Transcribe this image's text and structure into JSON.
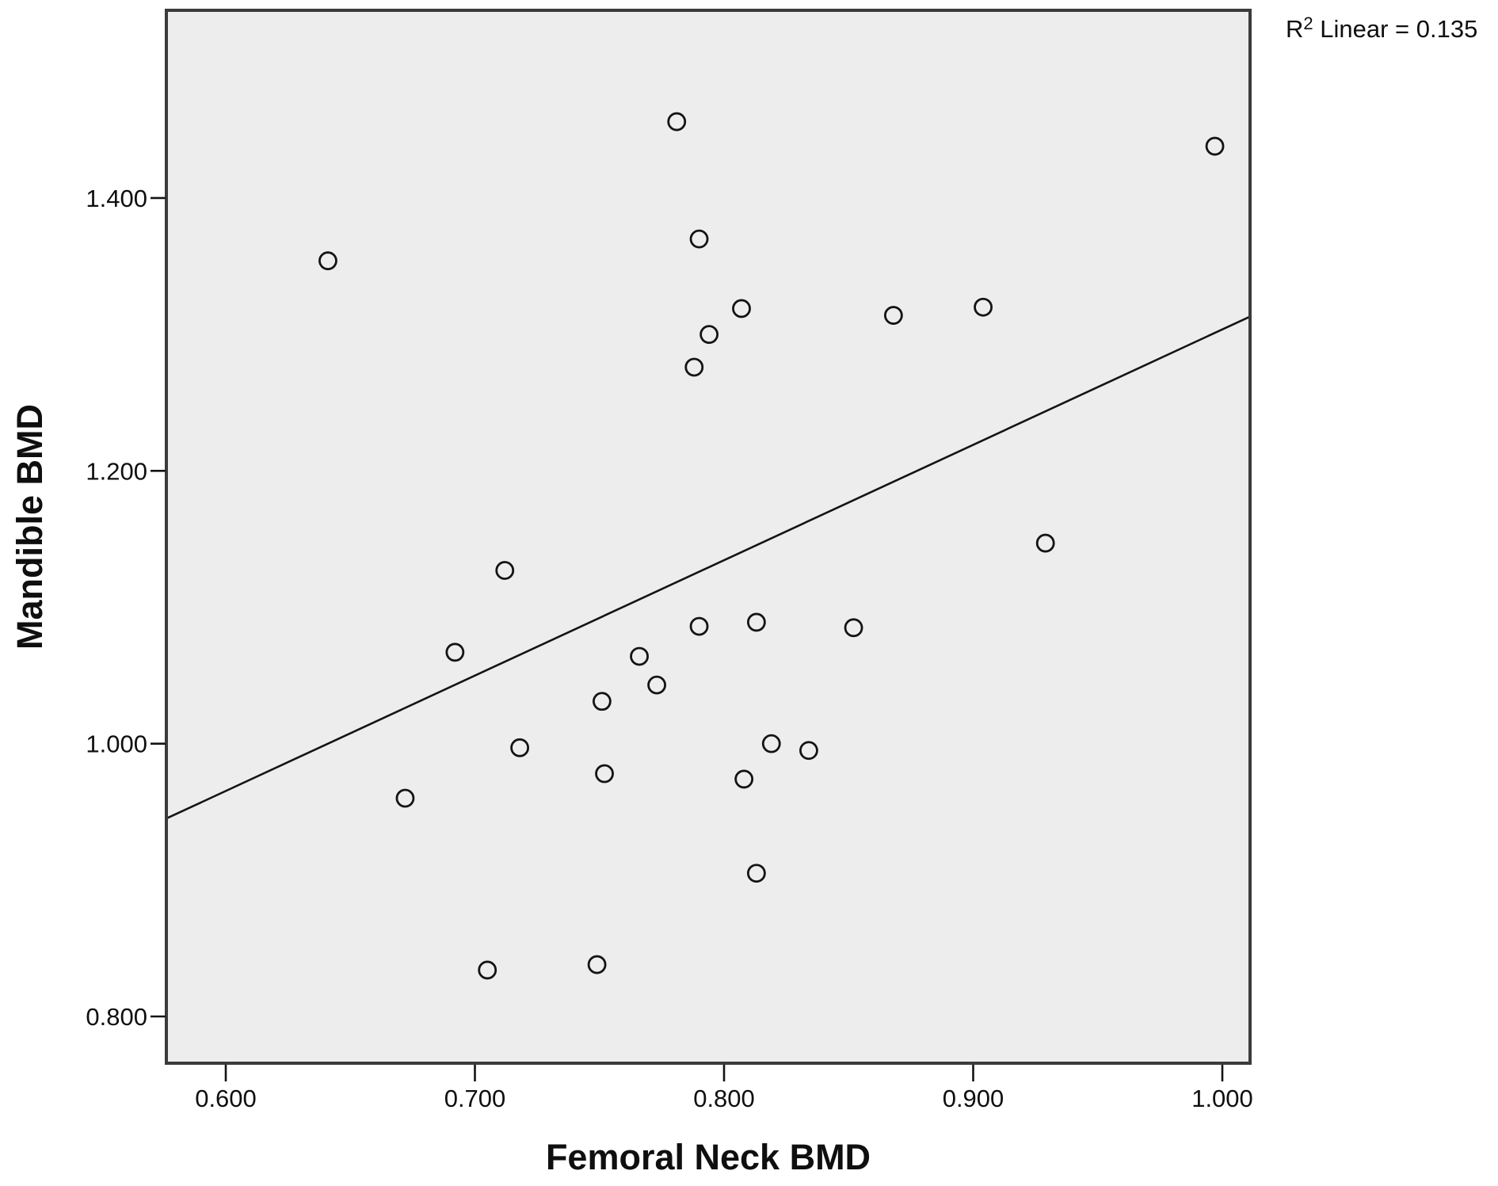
{
  "chart_data": {
    "type": "scatter",
    "title": "",
    "xlabel": "Femoral Neck BMD",
    "ylabel": "Mandible BMD",
    "annotation": {
      "base": "R",
      "sup": "2",
      "rest": " Linear = 0.135",
      "r_squared_value": 0.135
    },
    "x_ticks": [
      {
        "value": 0.6,
        "label": "0.600"
      },
      {
        "value": 0.7,
        "label": "0.700"
      },
      {
        "value": 0.8,
        "label": "0.800"
      },
      {
        "value": 0.9,
        "label": "0.900"
      },
      {
        "value": 1.0,
        "label": "1.000"
      }
    ],
    "y_ticks": [
      {
        "value": 0.8,
        "label": "0.800"
      },
      {
        "value": 1.0,
        "label": "1.000"
      },
      {
        "value": 1.2,
        "label": "1.200"
      },
      {
        "value": 1.4,
        "label": "1.400"
      }
    ],
    "xlim": [
      0.576,
      1.011
    ],
    "ylim": [
      0.766,
      1.538
    ],
    "grid": false,
    "legend": null,
    "points": [
      {
        "x": 0.781,
        "y": 1.456
      },
      {
        "x": 0.997,
        "y": 1.438
      },
      {
        "x": 0.641,
        "y": 1.354
      },
      {
        "x": 0.79,
        "y": 1.37
      },
      {
        "x": 0.807,
        "y": 1.319
      },
      {
        "x": 0.794,
        "y": 1.3
      },
      {
        "x": 0.788,
        "y": 1.276
      },
      {
        "x": 0.868,
        "y": 1.314
      },
      {
        "x": 0.904,
        "y": 1.32
      },
      {
        "x": 0.712,
        "y": 1.127
      },
      {
        "x": 0.929,
        "y": 1.147
      },
      {
        "x": 0.692,
        "y": 1.067
      },
      {
        "x": 0.766,
        "y": 1.064
      },
      {
        "x": 0.773,
        "y": 1.043
      },
      {
        "x": 0.751,
        "y": 1.031
      },
      {
        "x": 0.79,
        "y": 1.086
      },
      {
        "x": 0.813,
        "y": 1.089
      },
      {
        "x": 0.852,
        "y": 1.085
      },
      {
        "x": 0.718,
        "y": 0.997
      },
      {
        "x": 0.819,
        "y": 1.0
      },
      {
        "x": 0.834,
        "y": 0.995
      },
      {
        "x": 0.752,
        "y": 0.978
      },
      {
        "x": 0.808,
        "y": 0.974
      },
      {
        "x": 0.672,
        "y": 0.96
      },
      {
        "x": 0.813,
        "y": 0.905
      },
      {
        "x": 0.705,
        "y": 0.834
      },
      {
        "x": 0.749,
        "y": 0.838
      }
    ],
    "fit_line": {
      "x1": 0.576,
      "y1": 0.945,
      "x2": 1.011,
      "y2": 1.313
    },
    "colors": {
      "plot_bg": "#EDEDED",
      "frame": "#3B3B3B",
      "tick": "#141414",
      "marker_stroke": "#141414",
      "fit_line": "#141414",
      "text": "#0F0F0F",
      "page_bg": "#FFFFFF"
    }
  }
}
